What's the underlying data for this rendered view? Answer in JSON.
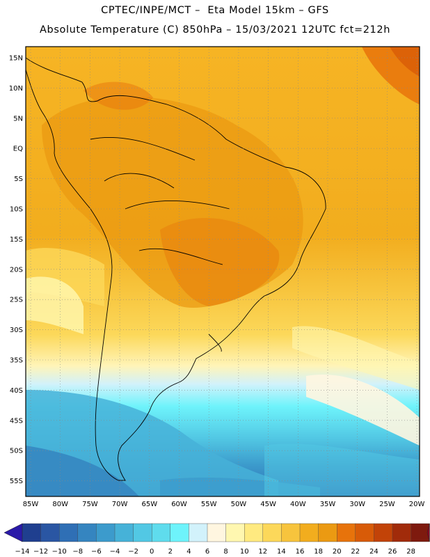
{
  "header": {
    "line1": "CPTEC/INPE/MCT –  Eta Model 15km – GFS",
    "line2": "Absolute Temperature (C) 850hPa – 15/03/2021 12UTC fct=212h"
  },
  "map": {
    "lat_labels": [
      "15N",
      "10N",
      "5N",
      "EQ",
      "5S",
      "10S",
      "15S",
      "20S",
      "25S",
      "30S",
      "35S",
      "40S",
      "45S",
      "50S",
      "55S"
    ],
    "lon_labels": [
      "85W",
      "80W",
      "75W",
      "70W",
      "65W",
      "60W",
      "55W",
      "50W",
      "45W",
      "40W",
      "35W",
      "30W",
      "25W",
      "20W"
    ],
    "lon_range": [
      -86,
      -19
    ],
    "lat_range": [
      -58,
      17
    ],
    "gridlines": "dotted"
  },
  "colorbar": {
    "labels": [
      "-14",
      "-12",
      "-10",
      "-8",
      "-6",
      "-4",
      "-2",
      "0",
      "2",
      "4",
      "6",
      "8",
      "10",
      "12",
      "14",
      "16",
      "18",
      "20",
      "22",
      "24",
      "26",
      "28"
    ],
    "colors": [
      "#1f3f8f",
      "#2a56a3",
      "#2f6fb5",
      "#3585c0",
      "#3c9bcc",
      "#46b2d8",
      "#52c8e4",
      "#5fdced",
      "#6ef3fb",
      "#d2f2fb",
      "#fff6e0",
      "#fff7b0",
      "#ffea80",
      "#fcd85a",
      "#f7c43d",
      "#f2ad1e",
      "#eb9a12",
      "#e7730b",
      "#d85b08",
      "#c24308",
      "#a12b0a",
      "#7e1a0e"
    ],
    "end_left_color": "#2a1aa8",
    "end_right_color": "#8a0620"
  }
}
